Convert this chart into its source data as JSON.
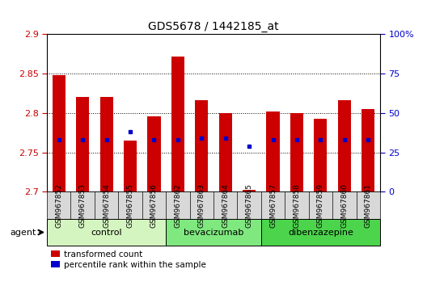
{
  "title": "GDS5678 / 1442185_at",
  "samples": [
    "GSM967852",
    "GSM967853",
    "GSM967854",
    "GSM967855",
    "GSM967856",
    "GSM967862",
    "GSM967863",
    "GSM967864",
    "GSM967865",
    "GSM967857",
    "GSM967858",
    "GSM967859",
    "GSM967860",
    "GSM967861"
  ],
  "transformed_counts": [
    2.848,
    2.82,
    2.82,
    2.765,
    2.796,
    2.872,
    2.816,
    2.8,
    2.702,
    2.802,
    2.8,
    2.793,
    2.816,
    2.805
  ],
  "percentile_ranks": [
    33,
    33,
    33,
    38,
    33,
    33,
    34,
    34,
    29,
    33,
    33,
    33,
    33,
    33
  ],
  "ylim_left": [
    2.7,
    2.9
  ],
  "ylim_right": [
    0,
    100
  ],
  "yticks_left": [
    2.7,
    2.75,
    2.8,
    2.85,
    2.9
  ],
  "yticks_right": [
    0,
    25,
    50,
    75,
    100
  ],
  "groups": [
    {
      "name": "control",
      "start": 0,
      "end": 5,
      "color": "#d4f5c0"
    },
    {
      "name": "bevacizumab",
      "start": 5,
      "end": 9,
      "color": "#7fe87f"
    },
    {
      "name": "dibenzazepine",
      "start": 9,
      "end": 14,
      "color": "#4cd44c"
    }
  ],
  "bar_color": "#cc0000",
  "dot_color": "#0000cc",
  "bar_width": 0.55,
  "base_value": 2.7,
  "legend_labels": [
    "transformed count",
    "percentile rank within the sample"
  ],
  "legend_colors": [
    "#cc0000",
    "#0000cc"
  ],
  "agent_label": "agent",
  "background_color": "#ffffff",
  "tick_label_color_left": "#cc0000",
  "tick_label_color_right": "#0000cc",
  "xticklabel_bg": "#d8d8d8"
}
